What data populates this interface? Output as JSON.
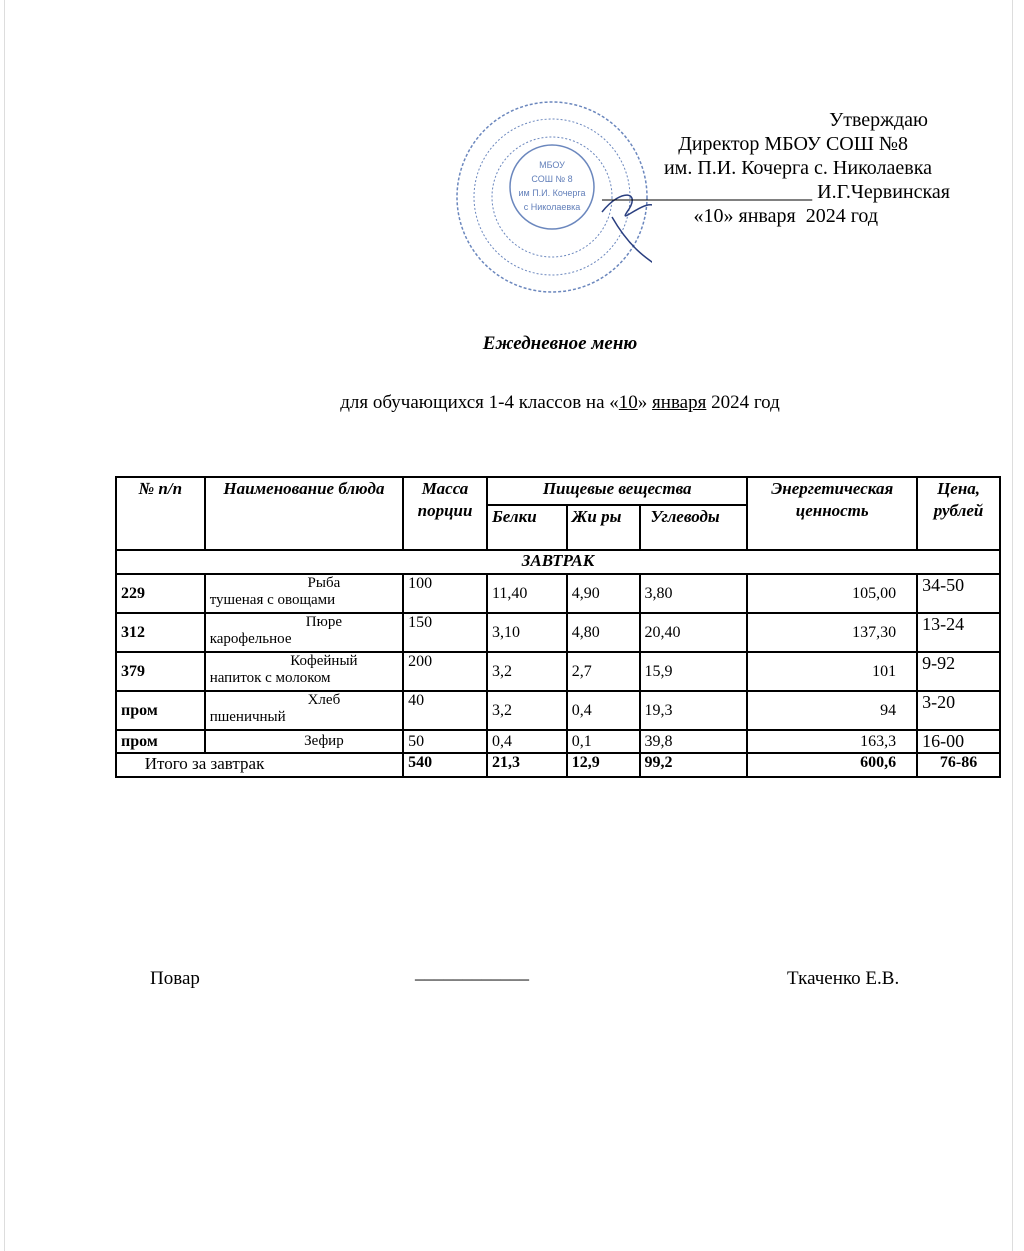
{
  "approval": {
    "line1": "Утверждаю",
    "line2": "Директор МБОУ СОШ №8",
    "line3": "им. П.И. Кочерга с. Николаевка",
    "line4": "_____________________ И.Г.Червинская",
    "line5": "«10» января  2024 год"
  },
  "stamp": {
    "center": [
      "МБОУ",
      "СОШ № 8",
      "им П.И. Кочерга",
      "с Николаевка"
    ],
    "color": "#3a5fa8"
  },
  "title": "Ежедневное меню",
  "subtitle": {
    "prefix": "для обучающихся 1-4 классов на «",
    "day": "10",
    "mid": "» ",
    "month": "января",
    "suffix": " 2024 год"
  },
  "table": {
    "headers": {
      "num": "№ п/п",
      "name": "Наименование блюда",
      "mass": "Масса порции",
      "nutrients": "Пищевые вещества",
      "protein": "Белки",
      "fat": "Жи ры",
      "carbs": "Углеводы",
      "energy": "Энергетическая ценность",
      "price": "Цена, рублей"
    },
    "section": "ЗАВТРАК",
    "rows": [
      {
        "num": "229",
        "name1": "Рыба",
        "name2": "тушеная с овощами",
        "mass": "100",
        "protein": "11,40",
        "fat": "4,90",
        "carbs": "3,80",
        "energy": "105,00",
        "price": "34-50"
      },
      {
        "num": "312",
        "name1": "Пюре",
        "name2": "карофельное",
        "mass": "150",
        "protein": "3,10",
        "fat": "4,80",
        "carbs": "20,40",
        "energy": "137,30",
        "price": "13-24"
      },
      {
        "num": "379",
        "name1": "Кофейный",
        "name2": "напиток с молоком",
        "mass": "200",
        "protein": "3,2",
        "fat": "2,7",
        "carbs": "15,9",
        "energy": "101",
        "price": "9-92"
      },
      {
        "num": "пром",
        "name1": "Хлеб",
        "name2": "пшеничный",
        "mass": "40",
        "protein": "3,2",
        "fat": "0,4",
        "carbs": "19,3",
        "energy": "94",
        "price": "3-20"
      },
      {
        "num": "пром",
        "name1": "Зефир",
        "name2": "",
        "mass": "50",
        "protein": "0,4",
        "fat": "0,1",
        "carbs": "39,8",
        "energy": "163,3",
        "price": "16-00"
      }
    ],
    "total": {
      "label": "Итого за завтрак",
      "mass": "540",
      "protein": "21,3",
      "fat": "12,9",
      "carbs": "99,2",
      "energy": "600,6",
      "price": "76-86"
    }
  },
  "footer": {
    "role": "Повар",
    "line": "____________",
    "name": "Ткаченко Е.В."
  }
}
